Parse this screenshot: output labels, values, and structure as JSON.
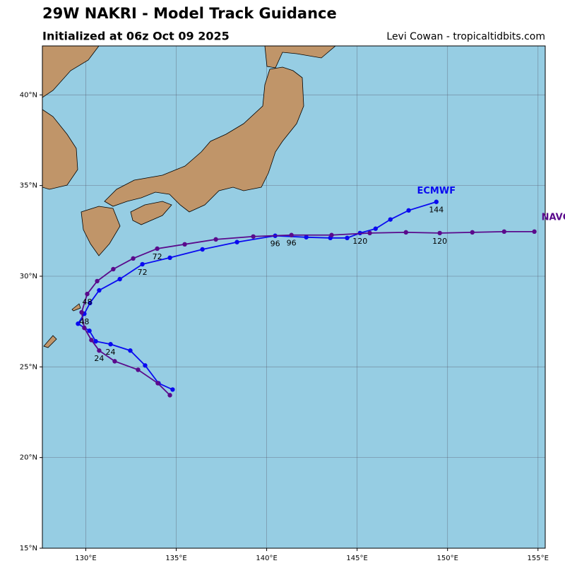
{
  "chart_data": {
    "type": "track",
    "title": "29W NAKRI - Model Track Guidance",
    "subtitle": "Initialized at 06z Oct 09 2025",
    "credit": "Levi Cowan - tropicaltidbits.com",
    "xlim": [
      127.6,
      155.4
    ],
    "ylim": [
      15,
      42.7
    ],
    "xticks": [
      {
        "value": 130,
        "label": "130°E"
      },
      {
        "value": 135,
        "label": "135°E"
      },
      {
        "value": 140,
        "label": "140°E"
      },
      {
        "value": 145,
        "label": "145°E"
      },
      {
        "value": 150,
        "label": "150°E"
      },
      {
        "value": 155,
        "label": "155°E"
      }
    ],
    "yticks": [
      {
        "value": 15,
        "label": "15°N"
      },
      {
        "value": 20,
        "label": "20°N"
      },
      {
        "value": 25,
        "label": "25°N"
      },
      {
        "value": 30,
        "label": "30°N"
      },
      {
        "value": 35,
        "label": "35°N"
      },
      {
        "value": 40,
        "label": "40°N"
      }
    ],
    "grid": true,
    "series": [
      {
        "name": "ECMWF",
        "color": "#0a0af0",
        "x": [
          134.8,
          134.02,
          133.28,
          132.46,
          131.37,
          130.55,
          130.2,
          129.57,
          129.92,
          130.23,
          130.74,
          131.88,
          133.13,
          134.65,
          136.45,
          138.36,
          140.47,
          142.19,
          143.52,
          144.45,
          145.16,
          146.02,
          146.84,
          147.85,
          149.38
        ],
        "y": [
          23.75,
          24.1,
          25.08,
          25.9,
          26.25,
          26.41,
          26.99,
          27.38,
          27.93,
          28.52,
          29.22,
          29.84,
          30.66,
          31.02,
          31.48,
          31.88,
          32.23,
          32.15,
          32.11,
          32.11,
          32.38,
          32.62,
          33.13,
          33.63,
          34.1
        ],
        "labels": [
          null,
          null,
          null,
          null,
          "24",
          null,
          null,
          null,
          "48",
          null,
          null,
          null,
          "72",
          null,
          null,
          null,
          "96",
          null,
          null,
          null,
          "120",
          null,
          null,
          null,
          "144"
        ]
      },
      {
        "name": "NAVGEM",
        "color": "#5a0a8c",
        "x": [
          134.65,
          133.98,
          132.89,
          131.6,
          130.74,
          130.31,
          129.92,
          129.77,
          130.08,
          130.63,
          131.52,
          132.62,
          133.95,
          135.47,
          137.19,
          139.26,
          141.37,
          143.59,
          145.7,
          147.7,
          149.57,
          151.37,
          153.13,
          154.8
        ],
        "y": [
          23.44,
          24.1,
          24.84,
          25.31,
          25.9,
          26.48,
          27.15,
          28.01,
          29.02,
          29.73,
          30.39,
          30.98,
          31.52,
          31.76,
          32.03,
          32.19,
          32.27,
          32.27,
          32.38,
          32.42,
          32.38,
          32.42,
          32.46,
          32.46
        ],
        "labels": [
          null,
          null,
          null,
          null,
          "24",
          null,
          null,
          null,
          "48",
          null,
          null,
          null,
          "72",
          null,
          null,
          null,
          "96",
          null,
          null,
          null,
          "120",
          null,
          null,
          null
        ]
      }
    ]
  }
}
